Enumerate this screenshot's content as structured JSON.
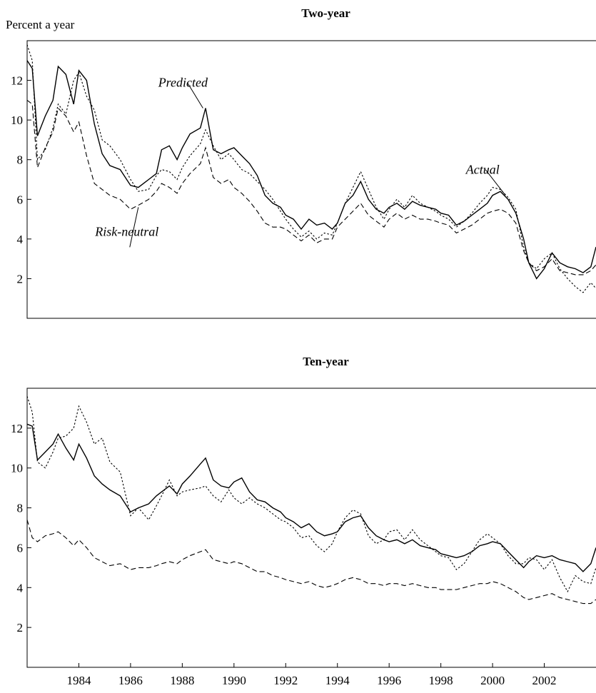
{
  "page": {
    "y_unit_label": "Percent a year"
  },
  "chart_data": [
    {
      "type": "line",
      "title": "Two-year",
      "ylabel": "Percent a year",
      "xlabel": "",
      "xlim": [
        1982.0,
        2004.0
      ],
      "ylim": [
        0,
        14
      ],
      "yticks": [
        2,
        4,
        6,
        8,
        10,
        12
      ],
      "xticks": [],
      "annotations": [
        {
          "text": "Predicted",
          "series": "Predicted",
          "x": 1988.8,
          "y": 10.6
        },
        {
          "text": "Actual",
          "series": "Actual",
          "x": 2000.5,
          "y": 6.2
        },
        {
          "text": "Risk-neutral",
          "series": "Risk-neutral",
          "x": 1986.3,
          "y": 5.6
        }
      ],
      "series": [
        {
          "name": "Predicted",
          "style": "solid",
          "x": [
            1982.0,
            1982.2,
            1982.4,
            1982.7,
            1983.0,
            1983.2,
            1983.5,
            1983.8,
            1984.0,
            1984.3,
            1984.6,
            1984.9,
            1985.2,
            1985.6,
            1986.0,
            1986.3,
            1986.7,
            1987.0,
            1987.2,
            1987.5,
            1987.8,
            1988.0,
            1988.3,
            1988.7,
            1988.9,
            1989.2,
            1989.5,
            1989.8,
            1990.0,
            1990.3,
            1990.6,
            1990.9,
            1991.2,
            1991.5,
            1991.8,
            1992.0,
            1992.3,
            1992.6,
            1992.9,
            1993.2,
            1993.5,
            1993.8,
            1994.0,
            1994.3,
            1994.6,
            1994.9,
            1995.2,
            1995.5,
            1995.8,
            1996.0,
            1996.3,
            1996.6,
            1996.9,
            1997.2,
            1997.5,
            1997.8,
            1998.0,
            1998.3,
            1998.6,
            1998.9,
            1999.2,
            1999.5,
            1999.8,
            2000.0,
            2000.3,
            2000.6,
            2000.9,
            2001.2,
            2001.4,
            2001.7,
            2002.0,
            2002.3,
            2002.6,
            2002.9,
            2003.2,
            2003.5,
            2003.8,
            2004.0
          ],
          "values": [
            13.0,
            12.6,
            9.2,
            10.2,
            11.0,
            12.7,
            12.3,
            10.8,
            12.5,
            12.0,
            9.8,
            8.3,
            7.7,
            7.5,
            6.7,
            6.6,
            7.0,
            7.3,
            8.5,
            8.7,
            8.0,
            8.6,
            9.3,
            9.6,
            10.6,
            8.5,
            8.3,
            8.5,
            8.6,
            8.2,
            7.8,
            7.2,
            6.2,
            5.8,
            5.6,
            5.2,
            5.0,
            4.5,
            5.0,
            4.7,
            4.8,
            4.5,
            4.8,
            5.8,
            6.2,
            6.9,
            6.0,
            5.5,
            5.3,
            5.6,
            5.8,
            5.5,
            5.9,
            5.7,
            5.6,
            5.5,
            5.3,
            5.2,
            4.7,
            4.9,
            5.2,
            5.5,
            5.8,
            6.2,
            6.4,
            6.0,
            5.3,
            4.0,
            2.8,
            2.0,
            2.5,
            3.3,
            2.8,
            2.6,
            2.5,
            2.3,
            2.6,
            3.6
          ]
        },
        {
          "name": "Actual",
          "style": "dotted",
          "x": [
            1982.0,
            1982.2,
            1982.4,
            1982.7,
            1983.0,
            1983.2,
            1983.5,
            1983.8,
            1984.0,
            1984.3,
            1984.6,
            1984.9,
            1985.2,
            1985.6,
            1986.0,
            1986.3,
            1986.7,
            1987.0,
            1987.2,
            1987.5,
            1987.8,
            1988.0,
            1988.3,
            1988.7,
            1988.9,
            1989.2,
            1989.5,
            1989.8,
            1990.0,
            1990.3,
            1990.6,
            1990.9,
            1991.2,
            1991.5,
            1991.8,
            1992.0,
            1992.3,
            1992.6,
            1992.9,
            1993.2,
            1993.5,
            1993.8,
            1994.0,
            1994.3,
            1994.6,
            1994.9,
            1995.2,
            1995.5,
            1995.8,
            1996.0,
            1996.3,
            1996.6,
            1996.9,
            1997.2,
            1997.5,
            1997.8,
            1998.0,
            1998.3,
            1998.6,
            1998.9,
            1999.2,
            1999.5,
            1999.8,
            2000.0,
            2000.3,
            2000.6,
            2000.9,
            2001.2,
            2001.4,
            2001.7,
            2002.0,
            2002.3,
            2002.6,
            2002.9,
            2003.2,
            2003.5,
            2003.8,
            2004.0
          ],
          "values": [
            13.8,
            13.0,
            8.0,
            8.5,
            9.6,
            10.8,
            10.3,
            12.0,
            12.4,
            11.2,
            10.5,
            9.0,
            8.7,
            8.0,
            7.0,
            6.4,
            6.5,
            7.2,
            7.5,
            7.4,
            7.0,
            7.6,
            8.2,
            8.8,
            9.5,
            8.7,
            8.0,
            8.3,
            8.0,
            7.5,
            7.3,
            6.9,
            6.5,
            6.0,
            5.4,
            5.0,
            4.5,
            4.1,
            4.4,
            4.0,
            4.3,
            4.2,
            4.8,
            5.8,
            6.6,
            7.4,
            6.5,
            5.6,
            5.0,
            5.5,
            6.0,
            5.6,
            6.2,
            5.8,
            5.6,
            5.4,
            5.2,
            5.0,
            4.6,
            4.9,
            5.3,
            5.8,
            6.2,
            6.6,
            6.5,
            6.1,
            5.5,
            3.6,
            2.8,
            2.5,
            3.0,
            3.3,
            2.5,
            2.0,
            1.6,
            1.3,
            1.8,
            1.5
          ]
        },
        {
          "name": "Risk-neutral",
          "style": "dashed",
          "x": [
            1982.0,
            1982.2,
            1982.4,
            1982.7,
            1983.0,
            1983.2,
            1983.5,
            1983.8,
            1984.0,
            1984.3,
            1984.6,
            1984.9,
            1985.2,
            1985.6,
            1986.0,
            1986.3,
            1986.7,
            1987.0,
            1987.2,
            1987.5,
            1987.8,
            1988.0,
            1988.3,
            1988.7,
            1988.9,
            1989.2,
            1989.5,
            1989.8,
            1990.0,
            1990.3,
            1990.6,
            1990.9,
            1991.2,
            1991.5,
            1991.8,
            1992.0,
            1992.3,
            1992.6,
            1992.9,
            1993.2,
            1993.5,
            1993.8,
            1994.0,
            1994.3,
            1994.6,
            1994.9,
            1995.2,
            1995.5,
            1995.8,
            1996.0,
            1996.3,
            1996.6,
            1996.9,
            1997.2,
            1997.5,
            1997.8,
            1998.0,
            1998.3,
            1998.6,
            1998.9,
            1999.2,
            1999.5,
            1999.8,
            2000.0,
            2000.3,
            2000.6,
            2000.9,
            2001.2,
            2001.4,
            2001.7,
            2002.0,
            2002.3,
            2002.6,
            2002.9,
            2003.2,
            2003.5,
            2003.8,
            2004.0
          ],
          "values": [
            11.0,
            10.8,
            7.6,
            8.6,
            9.4,
            10.6,
            10.2,
            9.4,
            9.9,
            8.2,
            6.8,
            6.5,
            6.2,
            6.0,
            5.5,
            5.7,
            6.0,
            6.4,
            6.8,
            6.6,
            6.3,
            6.8,
            7.3,
            7.8,
            8.6,
            7.1,
            6.8,
            7.0,
            6.6,
            6.3,
            5.9,
            5.4,
            4.8,
            4.6,
            4.6,
            4.5,
            4.2,
            3.9,
            4.2,
            3.8,
            4.0,
            4.0,
            4.6,
            5.0,
            5.4,
            5.8,
            5.2,
            4.9,
            4.6,
            5.0,
            5.3,
            5.0,
            5.2,
            5.0,
            5.0,
            4.9,
            4.8,
            4.7,
            4.3,
            4.5,
            4.7,
            5.0,
            5.3,
            5.4,
            5.5,
            5.3,
            4.8,
            3.4,
            2.8,
            2.4,
            2.6,
            3.0,
            2.4,
            2.3,
            2.2,
            2.2,
            2.4,
            2.7
          ]
        }
      ]
    },
    {
      "type": "line",
      "title": "Ten-year",
      "ylabel": "",
      "xlabel": "",
      "xlim": [
        1982.0,
        2004.0
      ],
      "ylim": [
        0,
        14
      ],
      "yticks": [
        2,
        4,
        6,
        8,
        10,
        12
      ],
      "xticks": [
        "1984",
        "1986",
        "1988",
        "1990",
        "1992",
        "1994",
        "1996",
        "1998",
        "2000",
        "2002"
      ],
      "annotations": [],
      "series": [
        {
          "name": "Predicted",
          "style": "solid",
          "x": [
            1982.0,
            1982.2,
            1982.4,
            1982.7,
            1983.0,
            1983.2,
            1983.5,
            1983.8,
            1984.0,
            1984.3,
            1984.6,
            1984.9,
            1985.2,
            1985.6,
            1986.0,
            1986.3,
            1986.7,
            1987.0,
            1987.2,
            1987.5,
            1987.8,
            1988.0,
            1988.3,
            1988.7,
            1988.9,
            1989.2,
            1989.5,
            1989.8,
            1990.0,
            1990.3,
            1990.6,
            1990.9,
            1991.2,
            1991.5,
            1991.8,
            1992.0,
            1992.3,
            1992.6,
            1992.9,
            1993.2,
            1993.5,
            1993.8,
            1994.0,
            1994.3,
            1994.6,
            1994.9,
            1995.2,
            1995.5,
            1995.8,
            1996.0,
            1996.3,
            1996.6,
            1996.9,
            1997.2,
            1997.5,
            1997.8,
            1998.0,
            1998.3,
            1998.6,
            1998.9,
            1999.2,
            1999.5,
            1999.8,
            2000.0,
            2000.3,
            2000.6,
            2000.9,
            2001.2,
            2001.4,
            2001.7,
            2002.0,
            2002.3,
            2002.6,
            2002.9,
            2003.2,
            2003.5,
            2003.8,
            2004.0
          ],
          "values": [
            12.2,
            12.1,
            10.4,
            10.8,
            11.2,
            11.7,
            11.0,
            10.4,
            11.2,
            10.5,
            9.6,
            9.2,
            8.9,
            8.6,
            7.8,
            8.0,
            8.2,
            8.6,
            8.8,
            9.1,
            8.7,
            9.2,
            9.6,
            10.2,
            10.5,
            9.4,
            9.1,
            9.0,
            9.3,
            9.5,
            8.8,
            8.4,
            8.3,
            8.0,
            7.8,
            7.5,
            7.3,
            7.0,
            7.2,
            6.8,
            6.6,
            6.7,
            6.8,
            7.3,
            7.5,
            7.6,
            7.0,
            6.6,
            6.4,
            6.3,
            6.4,
            6.2,
            6.4,
            6.1,
            6.0,
            5.9,
            5.7,
            5.6,
            5.5,
            5.6,
            5.8,
            6.1,
            6.2,
            6.3,
            6.2,
            5.8,
            5.4,
            5.0,
            5.3,
            5.6,
            5.5,
            5.6,
            5.4,
            5.3,
            5.2,
            4.8,
            5.2,
            6.0
          ]
        },
        {
          "name": "Actual",
          "style": "dotted",
          "x": [
            1982.0,
            1982.2,
            1982.4,
            1982.7,
            1983.0,
            1983.2,
            1983.5,
            1983.8,
            1984.0,
            1984.3,
            1984.6,
            1984.9,
            1985.2,
            1985.6,
            1986.0,
            1986.3,
            1986.7,
            1987.0,
            1987.2,
            1987.5,
            1987.8,
            1988.0,
            1988.3,
            1988.7,
            1988.9,
            1989.2,
            1989.5,
            1989.8,
            1990.0,
            1990.3,
            1990.6,
            1990.9,
            1991.2,
            1991.5,
            1991.8,
            1992.0,
            1992.3,
            1992.6,
            1992.9,
            1993.2,
            1993.5,
            1993.8,
            1994.0,
            1994.3,
            1994.6,
            1994.9,
            1995.2,
            1995.5,
            1995.8,
            1996.0,
            1996.3,
            1996.6,
            1996.9,
            1997.2,
            1997.5,
            1997.8,
            1998.0,
            1998.3,
            1998.6,
            1998.9,
            1999.2,
            1999.5,
            1999.8,
            2000.0,
            2000.3,
            2000.6,
            2000.9,
            2001.2,
            2001.4,
            2001.7,
            2002.0,
            2002.3,
            2002.6,
            2002.9,
            2003.2,
            2003.5,
            2003.8,
            2004.0
          ],
          "values": [
            13.6,
            12.8,
            10.3,
            10.0,
            10.8,
            11.5,
            11.6,
            12.0,
            13.1,
            12.3,
            11.2,
            11.5,
            10.3,
            9.8,
            7.6,
            8.0,
            7.4,
            8.1,
            8.6,
            9.4,
            8.6,
            8.8,
            8.9,
            9.0,
            9.1,
            8.6,
            8.3,
            8.9,
            8.5,
            8.2,
            8.5,
            8.2,
            8.0,
            7.7,
            7.4,
            7.3,
            7.0,
            6.5,
            6.6,
            6.1,
            5.8,
            6.2,
            6.8,
            7.5,
            7.9,
            7.7,
            6.6,
            6.2,
            6.4,
            6.8,
            6.9,
            6.4,
            6.9,
            6.4,
            6.1,
            5.8,
            5.6,
            5.5,
            4.9,
            5.2,
            5.8,
            6.4,
            6.7,
            6.5,
            6.2,
            5.6,
            5.2,
            5.2,
            5.5,
            5.4,
            4.9,
            5.4,
            4.5,
            3.8,
            4.6,
            4.3,
            4.2,
            5.0
          ]
        },
        {
          "name": "Risk-neutral",
          "style": "dashed",
          "x": [
            1982.0,
            1982.2,
            1982.4,
            1982.7,
            1983.0,
            1983.2,
            1983.5,
            1983.8,
            1984.0,
            1984.3,
            1984.6,
            1984.9,
            1985.2,
            1985.6,
            1986.0,
            1986.3,
            1986.7,
            1987.0,
            1987.2,
            1987.5,
            1987.8,
            1988.0,
            1988.3,
            1988.7,
            1988.9,
            1989.2,
            1989.5,
            1989.8,
            1990.0,
            1990.3,
            1990.6,
            1990.9,
            1991.2,
            1991.5,
            1991.8,
            1992.0,
            1992.3,
            1992.6,
            1992.9,
            1993.2,
            1993.5,
            1993.8,
            1994.0,
            1994.3,
            1994.6,
            1994.9,
            1995.2,
            1995.5,
            1995.8,
            1996.0,
            1996.3,
            1996.6,
            1996.9,
            1997.2,
            1997.5,
            1997.8,
            1998.0,
            1998.3,
            1998.6,
            1998.9,
            1999.2,
            1999.5,
            1999.8,
            2000.0,
            2000.3,
            2000.6,
            2000.9,
            2001.2,
            2001.4,
            2001.7,
            2002.0,
            2002.3,
            2002.6,
            2002.9,
            2003.2,
            2003.5,
            2003.8,
            2004.0
          ],
          "values": [
            7.4,
            6.5,
            6.3,
            6.6,
            6.7,
            6.8,
            6.5,
            6.1,
            6.4,
            6.0,
            5.5,
            5.3,
            5.1,
            5.2,
            4.9,
            5.0,
            5.0,
            5.1,
            5.2,
            5.3,
            5.2,
            5.4,
            5.6,
            5.8,
            5.9,
            5.4,
            5.3,
            5.2,
            5.3,
            5.2,
            5.0,
            4.8,
            4.8,
            4.6,
            4.5,
            4.4,
            4.3,
            4.2,
            4.3,
            4.1,
            4.0,
            4.1,
            4.2,
            4.4,
            4.5,
            4.4,
            4.2,
            4.2,
            4.1,
            4.2,
            4.2,
            4.1,
            4.2,
            4.1,
            4.0,
            4.0,
            3.9,
            3.9,
            3.9,
            4.0,
            4.1,
            4.2,
            4.2,
            4.3,
            4.2,
            4.0,
            3.8,
            3.5,
            3.4,
            3.5,
            3.6,
            3.7,
            3.5,
            3.4,
            3.3,
            3.2,
            3.2,
            3.4
          ]
        }
      ]
    }
  ]
}
